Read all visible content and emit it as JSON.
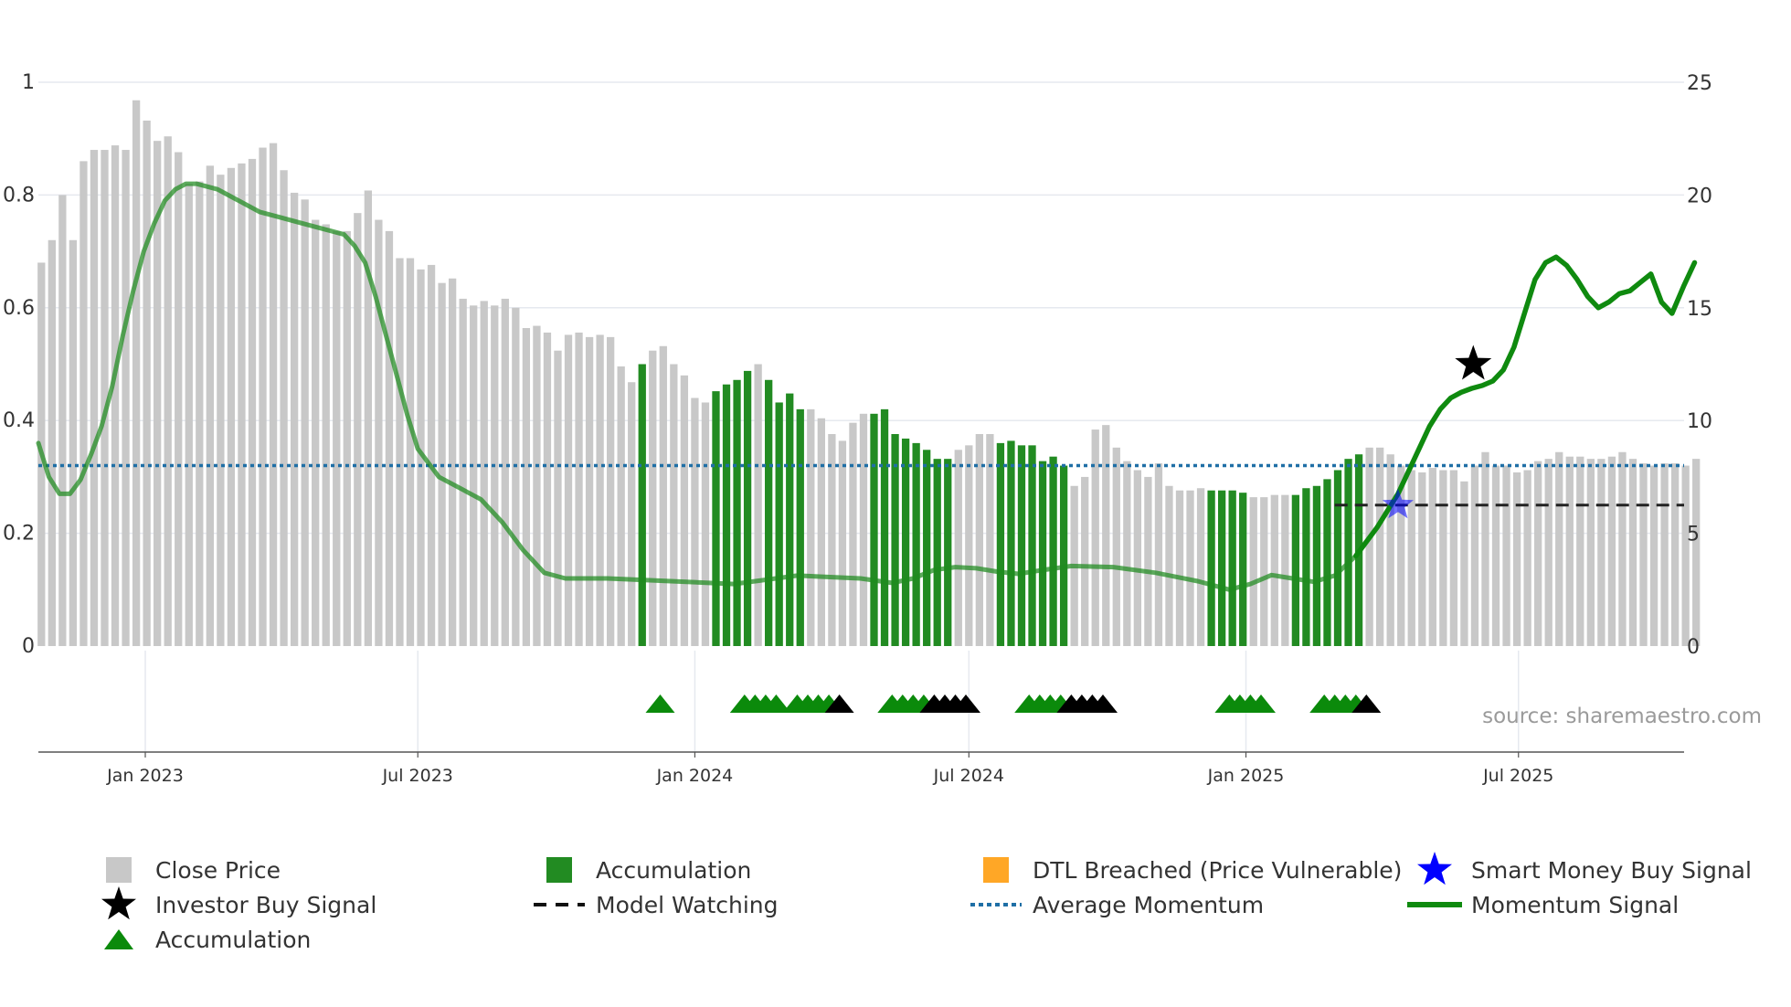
{
  "chart_data": {
    "type": "bar",
    "title": "",
    "source": "source: sharemaestro.com",
    "left_axis": {
      "ticks": [
        "0",
        "0.2",
        "0.4",
        "0.6",
        "0.8",
        "1"
      ],
      "ylim": [
        0,
        1
      ]
    },
    "right_axis": {
      "ticks": [
        "0",
        "5",
        "10",
        "15",
        "20",
        "25"
      ],
      "ylim": [
        0,
        25
      ]
    },
    "x_axis": {
      "start": "2022-10-22",
      "end": "2025-10-19",
      "ticks": [
        {
          "label": "Jan 2023",
          "date": "2023-01-01"
        },
        {
          "label": "Jul 2023",
          "date": "2023-07-01"
        },
        {
          "label": "Jan 2024",
          "date": "2024-01-01"
        },
        {
          "label": "Jul 2024",
          "date": "2024-07-01"
        },
        {
          "label": "Jan 2025",
          "date": "2025-01-01"
        },
        {
          "label": "Jul 2025",
          "date": "2025-07-01"
        }
      ]
    },
    "close_price": {
      "name": "Close Price",
      "start": "2022-10-24",
      "interval_days": 7,
      "color": "#c8c8c8",
      "values": [
        17.0,
        18.0,
        20.0,
        18.0,
        21.5,
        22.0,
        22.0,
        22.2,
        22.0,
        24.2,
        23.3,
        22.4,
        22.6,
        21.9,
        20.5,
        20.6,
        21.3,
        20.9,
        21.2,
        21.4,
        21.6,
        22.1,
        22.3,
        21.1,
        20.1,
        19.8,
        18.9,
        18.7,
        18.4,
        18.4,
        19.2,
        20.2,
        18.9,
        18.4,
        17.2,
        17.2,
        16.7,
        16.9,
        16.1,
        16.3,
        15.4,
        15.1,
        15.3,
        15.1,
        15.4,
        15.0,
        14.1,
        14.2,
        13.9,
        13.1,
        13.8,
        13.9,
        13.7,
        13.8,
        13.7,
        12.4,
        11.7,
        12.5,
        13.1,
        13.3,
        12.5,
        12.0,
        11.0,
        10.8,
        11.3,
        11.6,
        11.8,
        12.2,
        12.5,
        11.8,
        10.8,
        11.2,
        10.5,
        10.5,
        10.1,
        9.4,
        9.1,
        9.9,
        10.3,
        10.3,
        10.5,
        9.4,
        9.2,
        9.0,
        8.7,
        8.3,
        8.3,
        8.7,
        8.9,
        9.4,
        9.4,
        9.0,
        9.1,
        8.9,
        8.9,
        8.2,
        8.4,
        8.0,
        7.1,
        7.5,
        9.6,
        9.8,
        8.8,
        8.2,
        7.8,
        7.5,
        8.1,
        7.1,
        6.9,
        6.9,
        7.0,
        6.9,
        6.9,
        6.9,
        6.8,
        6.6,
        6.6,
        6.7,
        6.7,
        6.7,
        7.0,
        7.1,
        7.4,
        7.8,
        8.3,
        8.5,
        8.8,
        8.8,
        8.5,
        8.0,
        7.8,
        7.7,
        7.9,
        7.8,
        7.8,
        7.3,
        8.0,
        8.6,
        8.0,
        8.0,
        7.7,
        7.8,
        8.2,
        8.3,
        8.6,
        8.4,
        8.4,
        8.3,
        8.3,
        8.4,
        8.6,
        8.3,
        8.1,
        8.0,
        8.1,
        8.1,
        8.0,
        8.3
      ]
    },
    "accumulation_bars": {
      "name": "Accumulation",
      "color": "#228b22",
      "indices": [
        57,
        64,
        65,
        66,
        67,
        69,
        70,
        71,
        72,
        79,
        80,
        81,
        82,
        83,
        84,
        85,
        86,
        91,
        92,
        93,
        94,
        95,
        96,
        97,
        111,
        112,
        113,
        114,
        119,
        120,
        121,
        122,
        123,
        124,
        125
      ]
    },
    "momentum_signal": {
      "name": "Momentum Signal",
      "color": "#1f8a1f",
      "axis": "left",
      "points": [
        [
          "2022-10-22",
          0.36
        ],
        [
          "2022-10-29",
          0.3
        ],
        [
          "2022-11-05",
          0.27
        ],
        [
          "2022-11-12",
          0.27
        ],
        [
          "2022-11-19",
          0.295
        ],
        [
          "2022-11-26",
          0.34
        ],
        [
          "2022-12-03",
          0.39
        ],
        [
          "2022-12-10",
          0.46
        ],
        [
          "2022-12-17",
          0.55
        ],
        [
          "2022-12-24",
          0.63
        ],
        [
          "2022-12-31",
          0.7
        ],
        [
          "2023-01-07",
          0.75
        ],
        [
          "2023-01-14",
          0.79
        ],
        [
          "2023-01-21",
          0.81
        ],
        [
          "2023-01-28",
          0.82
        ],
        [
          "2023-02-04",
          0.82
        ],
        [
          "2023-02-18",
          0.81
        ],
        [
          "2023-03-04",
          0.79
        ],
        [
          "2023-03-18",
          0.77
        ],
        [
          "2023-04-01",
          0.76
        ],
        [
          "2023-04-15",
          0.75
        ],
        [
          "2023-04-29",
          0.74
        ],
        [
          "2023-05-13",
          0.73
        ],
        [
          "2023-05-20",
          0.71
        ],
        [
          "2023-05-27",
          0.68
        ],
        [
          "2023-06-03",
          0.62
        ],
        [
          "2023-06-10",
          0.55
        ],
        [
          "2023-06-17",
          0.48
        ],
        [
          "2023-06-24",
          0.41
        ],
        [
          "2023-07-01",
          0.35
        ],
        [
          "2023-07-15",
          0.3
        ],
        [
          "2023-07-29",
          0.28
        ],
        [
          "2023-08-12",
          0.26
        ],
        [
          "2023-08-26",
          0.22
        ],
        [
          "2023-09-09",
          0.17
        ],
        [
          "2023-09-23",
          0.13
        ],
        [
          "2023-10-07",
          0.12
        ],
        [
          "2023-11-04",
          0.12
        ],
        [
          "2023-12-16",
          0.115
        ],
        [
          "2024-01-27",
          0.11
        ],
        [
          "2024-03-09",
          0.125
        ],
        [
          "2024-04-20",
          0.12
        ],
        [
          "2024-05-11",
          0.112
        ],
        [
          "2024-05-25",
          0.12
        ],
        [
          "2024-06-08",
          0.135
        ],
        [
          "2024-06-22",
          0.14
        ],
        [
          "2024-07-06",
          0.138
        ],
        [
          "2024-07-20",
          0.132
        ],
        [
          "2024-08-03",
          0.128
        ],
        [
          "2024-08-17",
          0.134
        ],
        [
          "2024-09-07",
          0.142
        ],
        [
          "2024-10-05",
          0.14
        ],
        [
          "2024-11-02",
          0.13
        ],
        [
          "2024-11-30",
          0.115
        ],
        [
          "2024-12-21",
          0.1
        ],
        [
          "2025-01-04",
          0.11
        ],
        [
          "2025-01-18",
          0.126
        ],
        [
          "2025-02-01",
          0.12
        ],
        [
          "2025-02-15",
          0.114
        ],
        [
          "2025-03-01",
          0.125
        ],
        [
          "2025-03-15",
          0.16
        ],
        [
          "2025-03-29",
          0.21
        ],
        [
          "2025-04-12",
          0.27
        ],
        [
          "2025-04-19",
          0.31
        ],
        [
          "2025-04-26",
          0.35
        ],
        [
          "2025-05-03",
          0.39
        ],
        [
          "2025-05-10",
          0.42
        ],
        [
          "2025-05-17",
          0.44
        ],
        [
          "2025-05-24",
          0.45
        ],
        [
          "2025-05-31",
          0.457
        ],
        [
          "2025-06-07",
          0.462
        ],
        [
          "2025-06-14",
          0.47
        ],
        [
          "2025-06-21",
          0.49
        ],
        [
          "2025-06-28",
          0.53
        ],
        [
          "2025-07-05",
          0.59
        ],
        [
          "2025-07-12",
          0.65
        ],
        [
          "2025-07-19",
          0.68
        ],
        [
          "2025-07-26",
          0.69
        ],
        [
          "2025-08-02",
          0.675
        ],
        [
          "2025-08-09",
          0.65
        ],
        [
          "2025-08-16",
          0.62
        ],
        [
          "2025-08-23",
          0.6
        ],
        [
          "2025-08-30",
          0.61
        ],
        [
          "2025-09-06",
          0.625
        ],
        [
          "2025-09-13",
          0.63
        ],
        [
          "2025-09-20",
          0.645
        ],
        [
          "2025-09-27",
          0.66
        ],
        [
          "2025-10-04",
          0.61
        ],
        [
          "2025-10-11",
          0.59
        ],
        [
          "2025-10-19",
          0.64
        ],
        [
          "2025-10-26",
          0.68
        ]
      ],
      "bold_from": "2025-03-15"
    },
    "average_momentum": {
      "name": "Average Momentum",
      "value": 0.32,
      "color": "#1f6fa6"
    },
    "model_watching": {
      "name": "Model Watching",
      "value": 0.25,
      "from": "2025-03-01",
      "color": "#222222"
    },
    "investor_buy_signal": {
      "name": "Investor Buy Signal",
      "date": "2025-06-01",
      "value": 0.5,
      "color": "#000000"
    },
    "smart_money_buy_signal": {
      "name": "Smart Money Buy Signal",
      "date": "2025-04-12",
      "value": 0.25,
      "color": "#0000ff"
    },
    "accumulation_markers": {
      "name": "Accumulation",
      "green": "#0b8a0b",
      "black": "#000000",
      "markers": [
        {
          "date": "2023-12-09",
          "color": "green"
        },
        {
          "date": "2024-02-03",
          "color": "green"
        },
        {
          "date": "2024-02-10",
          "color": "green"
        },
        {
          "date": "2024-02-17",
          "color": "green"
        },
        {
          "date": "2024-02-24",
          "color": "green"
        },
        {
          "date": "2024-03-09",
          "color": "green"
        },
        {
          "date": "2024-03-16",
          "color": "green"
        },
        {
          "date": "2024-03-23",
          "color": "green"
        },
        {
          "date": "2024-03-30",
          "color": "green"
        },
        {
          "date": "2024-04-06",
          "color": "black"
        },
        {
          "date": "2024-05-11",
          "color": "green"
        },
        {
          "date": "2024-05-18",
          "color": "green"
        },
        {
          "date": "2024-05-25",
          "color": "green"
        },
        {
          "date": "2024-06-01",
          "color": "green"
        },
        {
          "date": "2024-06-08",
          "color": "black"
        },
        {
          "date": "2024-06-15",
          "color": "black"
        },
        {
          "date": "2024-06-22",
          "color": "black"
        },
        {
          "date": "2024-06-29",
          "color": "black"
        },
        {
          "date": "2024-08-10",
          "color": "green"
        },
        {
          "date": "2024-08-17",
          "color": "green"
        },
        {
          "date": "2024-08-24",
          "color": "green"
        },
        {
          "date": "2024-08-31",
          "color": "green"
        },
        {
          "date": "2024-09-07",
          "color": "black"
        },
        {
          "date": "2024-09-14",
          "color": "black"
        },
        {
          "date": "2024-09-21",
          "color": "black"
        },
        {
          "date": "2024-09-28",
          "color": "black"
        },
        {
          "date": "2024-12-21",
          "color": "green"
        },
        {
          "date": "2024-12-28",
          "color": "green"
        },
        {
          "date": "2025-01-04",
          "color": "green"
        },
        {
          "date": "2025-01-11",
          "color": "green"
        },
        {
          "date": "2025-02-22",
          "color": "green"
        },
        {
          "date": "2025-03-01",
          "color": "green"
        },
        {
          "date": "2025-03-08",
          "color": "green"
        },
        {
          "date": "2025-03-15",
          "color": "green"
        },
        {
          "date": "2025-03-22",
          "color": "black"
        }
      ]
    },
    "dtl_breached": {
      "name": "DTL Breached (Price Vulnerable)",
      "color": "#ffa726"
    },
    "legend": {
      "placement": "bottom",
      "items": [
        {
          "label": "Close Price",
          "symbol": "gray-square"
        },
        {
          "label": "Accumulation",
          "symbol": "green-square"
        },
        {
          "label": "DTL Breached (Price Vulnerable)",
          "symbol": "orange-square"
        },
        {
          "label": "Smart Money Buy Signal",
          "symbol": "blue-star"
        },
        {
          "label": "Investor Buy Signal",
          "symbol": "black-star"
        },
        {
          "label": "Model Watching",
          "symbol": "black-dashed-line"
        },
        {
          "label": "Average Momentum",
          "symbol": "blue-dotted-line"
        },
        {
          "label": "Momentum Signal",
          "symbol": "green-line"
        },
        {
          "label": "Accumulation",
          "symbol": "green-triangle"
        }
      ]
    },
    "grid": true
  }
}
